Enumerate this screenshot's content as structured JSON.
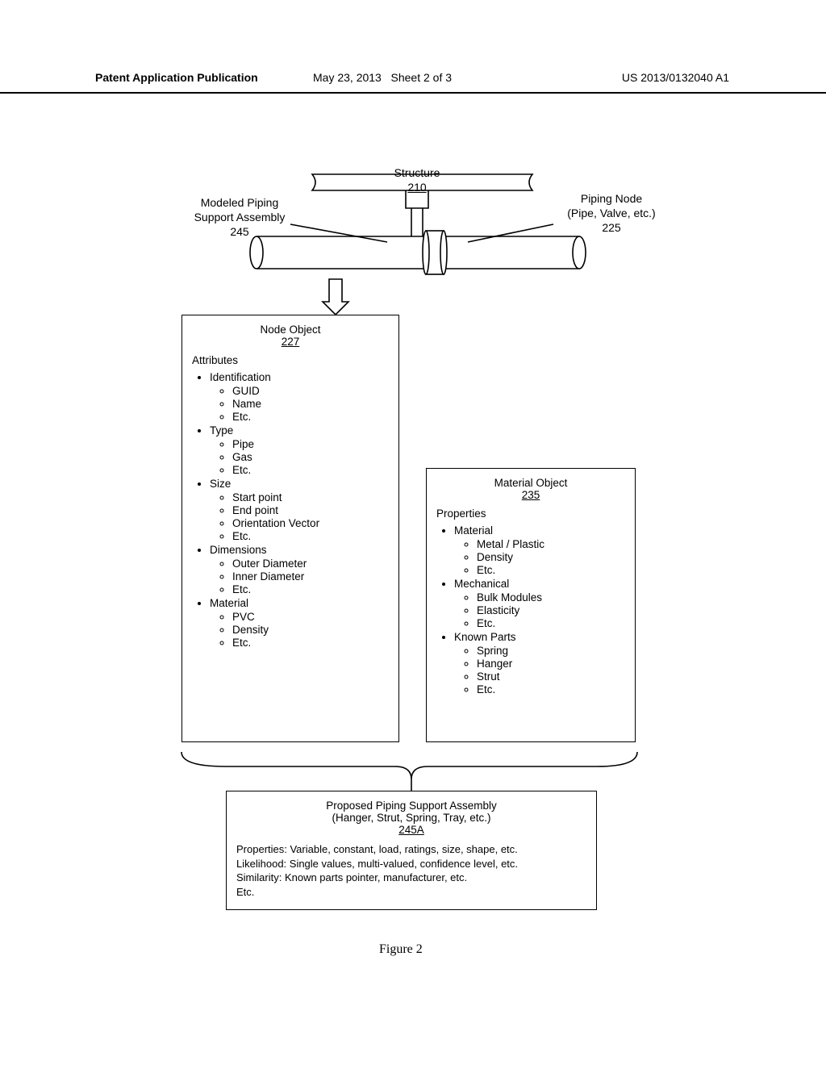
{
  "header": {
    "left": "Patent Application Publication",
    "mid_date": "May 23, 2013",
    "mid_sheet": "Sheet 2 of 3",
    "right": "US 2013/0132040 A1"
  },
  "structure": {
    "label": "Structure",
    "num": "210"
  },
  "modeled": {
    "line1": "Modeled Piping",
    "line2": "Support Assembly",
    "num": "245"
  },
  "pipingNode": {
    "line1": "Piping Node",
    "line2": "(Pipe, Valve, etc.)",
    "num": "225"
  },
  "nodeObject": {
    "title": "Node Object",
    "num": "227",
    "section": "Attributes",
    "attrs": [
      {
        "label": "Identification",
        "items": [
          "GUID",
          "Name",
          "Etc."
        ]
      },
      {
        "label": "Type",
        "items": [
          "Pipe",
          "Gas",
          "Etc."
        ]
      },
      {
        "label": "Size",
        "items": [
          "Start point",
          "End point",
          "Orientation Vector",
          "Etc."
        ]
      },
      {
        "label": "Dimensions",
        "items": [
          "Outer Diameter",
          "Inner Diameter",
          "Etc."
        ]
      },
      {
        "label": "Material",
        "items": [
          "PVC",
          "Density",
          "Etc."
        ]
      }
    ]
  },
  "materialObject": {
    "title": "Material Object",
    "num": "235",
    "section": "Properties",
    "attrs": [
      {
        "label": "Material",
        "items": [
          "Metal / Plastic",
          "Density",
          "Etc."
        ]
      },
      {
        "label": "Mechanical",
        "items": [
          "Bulk Modules",
          "Elasticity",
          "Etc."
        ]
      },
      {
        "label": "Known Parts",
        "items": [
          "Spring",
          "Hanger",
          "Strut",
          "Etc."
        ]
      }
    ]
  },
  "proposed": {
    "title": "Proposed Piping Support Assembly",
    "subtitle": "(Hanger, Strut, Spring, Tray, etc.)",
    "num": "245A",
    "lines": [
      "Properties:  Variable, constant, load, ratings, size, shape, etc.",
      "Likelihood:  Single values, multi-valued, confidence level, etc.",
      "Similarity: Known parts pointer, manufacturer, etc.",
      "Etc."
    ]
  },
  "caption": "Figure 2",
  "colors": {
    "line": "#000000",
    "bg": "#ffffff"
  }
}
